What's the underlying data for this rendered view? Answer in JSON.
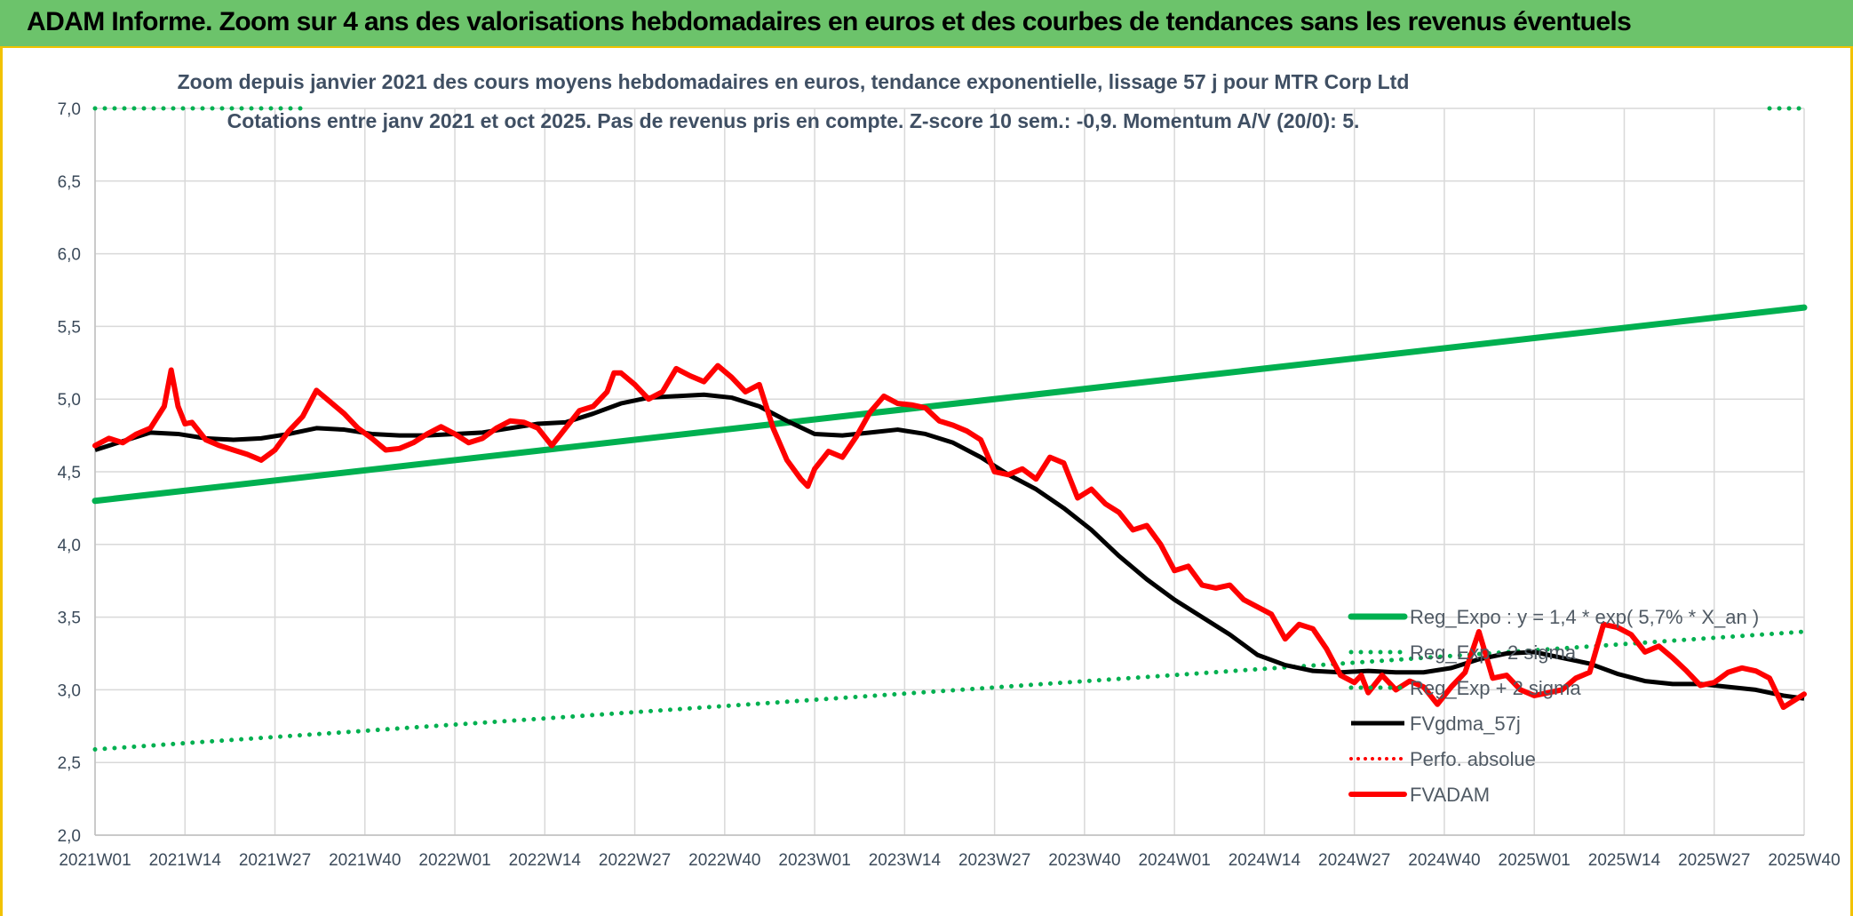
{
  "banner": {
    "title": "ADAM Informe. Zoom sur 4 ans des valorisations hebdomadaires en euros et des courbes de tendances sans les revenus éventuels"
  },
  "colors": {
    "banner_bg": "#6cc36b",
    "reg_green": "#00b050",
    "band_green": "#00b050",
    "trend_black": "#000000",
    "price_red": "#ff0000",
    "grid": "#d9d9d9"
  },
  "chart_data": {
    "type": "line",
    "title": "Zoom depuis janvier 2021 des cours moyens hebdomadaires en euros, tendance exponentielle, lissage 57 j pour MTR Corp Ltd",
    "subtitle": "Cotations entre janv 2021 et oct 2025. Pas de revenus pris en compte. Z-score 10 sem.: -0,9. Momentum A/V (20/0): 5.",
    "ylim": [
      2.0,
      7.0
    ],
    "y_ticks": [
      "2,0",
      "2,5",
      "3,0",
      "3,5",
      "4,0",
      "4,5",
      "5,0",
      "5,5",
      "6,0",
      "6,5",
      "7,0"
    ],
    "x_ticks": [
      "2021W01",
      "2021W14",
      "2021W27",
      "2021W40",
      "2022W01",
      "2022W14",
      "2022W27",
      "2022W40",
      "2023W01",
      "2023W14",
      "2023W27",
      "2023W40",
      "2024W01",
      "2024W14",
      "2024W27",
      "2024W40",
      "2025W01",
      "2025W14",
      "2025W27",
      "2025W40"
    ],
    "x_range": [
      0,
      247
    ],
    "legend": {
      "placement": "right",
      "entries": [
        {
          "key": "reg",
          "label": "Reg_Expo : y = 1,4 * exp( 5,7% *  X_an )"
        },
        {
          "key": "minus",
          "label": "Reg_Exp - 2 sigma"
        },
        {
          "key": "plus",
          "label": "Reg_Exp + 2 sigma"
        },
        {
          "key": "gdma",
          "label": "FVgdma_57j"
        },
        {
          "key": "perf",
          "label": "Perfo. absolue"
        },
        {
          "key": "price",
          "label": "FVADAM"
        }
      ]
    },
    "series": [
      {
        "key": "reg",
        "name": "Reg_Expo",
        "style": "solid-thick",
        "x": [
          0,
          247
        ],
        "values": [
          4.3,
          5.63
        ]
      },
      {
        "key": "minus",
        "name": "Reg_Exp - 2 sigma",
        "style": "dotted",
        "x": [
          0,
          247
        ],
        "values": [
          2.59,
          3.4
        ]
      },
      {
        "key": "plus",
        "name": "Reg_Exp + 2 sigma",
        "style": "dotted",
        "x": [
          0,
          31,
          242,
          247
        ],
        "values": [
          7.0,
          7.0,
          7.0,
          7.0
        ],
        "segments": [
          [
            0,
            31
          ],
          [
            242,
            247
          ]
        ]
      },
      {
        "key": "gdma",
        "name": "FVgdma_57j",
        "style": "solid",
        "x": [
          0,
          4,
          8,
          12,
          16,
          20,
          24,
          28,
          32,
          36,
          40,
          44,
          48,
          52,
          56,
          60,
          64,
          68,
          72,
          76,
          80,
          84,
          88,
          92,
          96,
          100,
          104,
          108,
          112,
          116,
          120,
          124,
          128,
          132,
          136,
          140,
          144,
          148,
          152,
          156,
          160,
          164,
          168,
          172,
          176,
          180,
          184,
          188,
          192,
          196,
          200,
          204,
          208,
          212,
          216,
          220,
          224,
          228,
          232,
          236,
          240,
          244,
          247
        ],
        "values": [
          4.65,
          4.71,
          4.77,
          4.76,
          4.73,
          4.72,
          4.73,
          4.76,
          4.8,
          4.79,
          4.76,
          4.75,
          4.75,
          4.76,
          4.77,
          4.8,
          4.83,
          4.84,
          4.9,
          4.97,
          5.01,
          5.02,
          5.03,
          5.01,
          4.95,
          4.85,
          4.76,
          4.75,
          4.77,
          4.79,
          4.76,
          4.7,
          4.6,
          4.48,
          4.38,
          4.25,
          4.1,
          3.92,
          3.76,
          3.62,
          3.5,
          3.38,
          3.24,
          3.17,
          3.13,
          3.12,
          3.13,
          3.12,
          3.12,
          3.15,
          3.21,
          3.25,
          3.26,
          3.22,
          3.18,
          3.11,
          3.06,
          3.04,
          3.04,
          3.02,
          3.0,
          2.96,
          2.94
        ]
      },
      {
        "key": "price",
        "name": "FVADAM",
        "style": "solid-thick",
        "x": [
          0,
          2,
          4,
          6,
          8,
          10,
          11,
          12,
          13,
          14,
          16,
          18,
          20,
          22,
          24,
          26,
          28,
          30,
          32,
          34,
          36,
          38,
          40,
          42,
          44,
          46,
          48,
          50,
          52,
          54,
          56,
          58,
          60,
          62,
          64,
          66,
          68,
          70,
          72,
          74,
          75,
          76,
          78,
          80,
          82,
          84,
          86,
          88,
          90,
          92,
          94,
          96,
          98,
          100,
          102,
          103,
          104,
          106,
          108,
          110,
          112,
          114,
          116,
          118,
          120,
          122,
          124,
          126,
          128,
          130,
          132,
          134,
          136,
          138,
          140,
          142,
          144,
          146,
          148,
          150,
          152,
          154,
          156,
          158,
          160,
          162,
          164,
          166,
          168,
          170,
          172,
          174,
          176,
          178,
          180,
          182,
          183,
          184,
          186,
          188,
          190,
          192,
          194,
          196,
          198,
          200,
          202,
          204,
          206,
          208,
          210,
          212,
          214,
          216,
          218,
          220,
          222,
          224,
          226,
          228,
          230,
          232,
          234,
          236,
          238,
          240,
          242,
          244,
          247
        ],
        "values": [
          4.68,
          4.73,
          4.7,
          4.76,
          4.8,
          4.95,
          5.2,
          4.95,
          4.83,
          4.84,
          4.72,
          4.68,
          4.65,
          4.62,
          4.58,
          4.65,
          4.78,
          4.88,
          5.06,
          4.98,
          4.9,
          4.8,
          4.73,
          4.65,
          4.66,
          4.7,
          4.76,
          4.81,
          4.76,
          4.7,
          4.73,
          4.8,
          4.85,
          4.84,
          4.8,
          4.68,
          4.8,
          4.92,
          4.95,
          5.05,
          5.18,
          5.18,
          5.1,
          5.0,
          5.05,
          5.21,
          5.16,
          5.12,
          5.23,
          5.15,
          5.05,
          5.1,
          4.8,
          4.58,
          4.45,
          4.4,
          4.52,
          4.64,
          4.6,
          4.74,
          4.91,
          5.02,
          4.97,
          4.96,
          4.94,
          4.85,
          4.82,
          4.78,
          4.72,
          4.5,
          4.48,
          4.52,
          4.45,
          4.6,
          4.56,
          4.32,
          4.38,
          4.28,
          4.22,
          4.1,
          4.13,
          4.0,
          3.82,
          3.85,
          3.72,
          3.7,
          3.72,
          3.62,
          3.57,
          3.52,
          3.35,
          3.45,
          3.42,
          3.28,
          3.1,
          3.05,
          3.1,
          2.98,
          3.1,
          3.0,
          3.06,
          3.02,
          2.9,
          3.02,
          3.12,
          3.4,
          3.08,
          3.1,
          3.0,
          2.96,
          2.98,
          3.0,
          3.08,
          3.12,
          3.45,
          3.43,
          3.38,
          3.26,
          3.3,
          3.22,
          3.13,
          3.03,
          3.05,
          3.12,
          3.15,
          3.13,
          3.08,
          2.88,
          2.97
        ]
      }
    ]
  }
}
